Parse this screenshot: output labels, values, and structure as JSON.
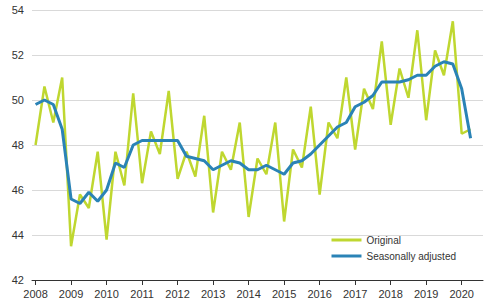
{
  "chart_data": {
    "type": "line",
    "x": [
      2008,
      2008.25,
      2008.5,
      2008.75,
      2009,
      2009.25,
      2009.5,
      2009.75,
      2010,
      2010.25,
      2010.5,
      2010.75,
      2011,
      2011.25,
      2011.5,
      2011.75,
      2012,
      2012.25,
      2012.5,
      2012.75,
      2013,
      2013.25,
      2013.5,
      2013.75,
      2014,
      2014.25,
      2014.5,
      2014.75,
      2015,
      2015.25,
      2015.5,
      2015.75,
      2016,
      2016.25,
      2016.5,
      2016.75,
      2017,
      2017.25,
      2017.5,
      2017.75,
      2018,
      2018.25,
      2018.5,
      2018.75,
      2019,
      2019.25,
      2019.5,
      2019.75,
      2020,
      2020.25
    ],
    "series": [
      {
        "name": "Original",
        "color": "#bfd730",
        "values": [
          48.0,
          50.6,
          49.0,
          51.0,
          43.5,
          45.8,
          45.2,
          47.7,
          43.8,
          47.7,
          46.2,
          50.3,
          46.3,
          48.6,
          47.6,
          50.4,
          46.5,
          47.7,
          46.6,
          49.3,
          45.0,
          47.7,
          46.9,
          49.0,
          44.8,
          47.4,
          46.7,
          49.0,
          44.6,
          47.8,
          47.0,
          49.7,
          45.8,
          49.0,
          48.3,
          51.0,
          47.8,
          50.5,
          49.6,
          52.6,
          48.9,
          51.4,
          50.1,
          53.1,
          49.1,
          52.2,
          51.1,
          53.5,
          48.5,
          48.7
        ]
      },
      {
        "name": "Seasonally adjusted",
        "color": "#2a83b6",
        "values": [
          49.8,
          50.0,
          49.8,
          48.7,
          45.6,
          45.4,
          45.9,
          45.5,
          46.0,
          47.2,
          47.0,
          48.0,
          48.2,
          48.2,
          48.2,
          48.2,
          48.2,
          47.5,
          47.4,
          47.3,
          46.9,
          47.1,
          47.3,
          47.2,
          46.9,
          46.9,
          47.1,
          46.9,
          46.7,
          47.2,
          47.3,
          47.6,
          48.0,
          48.4,
          48.8,
          49.0,
          49.7,
          49.9,
          50.2,
          50.8,
          50.8,
          50.8,
          50.9,
          51.1,
          51.1,
          51.5,
          51.7,
          51.6,
          50.5,
          48.3
        ]
      }
    ],
    "xlim": [
      2007.9,
      2020.6
    ],
    "xticks": [
      2008,
      2009,
      2010,
      2011,
      2012,
      2013,
      2014,
      2015,
      2016,
      2017,
      2018,
      2019,
      2020
    ],
    "ylim": [
      42,
      54
    ],
    "yticks": [
      42,
      44,
      46,
      48,
      50,
      52,
      54
    ],
    "grid": true,
    "legend": "bottom-right"
  }
}
